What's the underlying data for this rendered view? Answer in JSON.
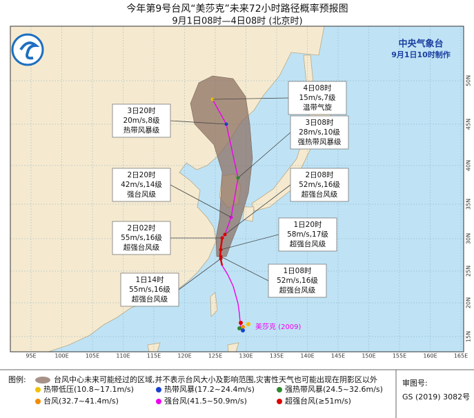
{
  "header": {
    "title": "今年第9号台风“美莎克”未来72小时路径概率预报图",
    "subtitle": "9月1日08时—4日08时 (北京时)"
  },
  "agency": {
    "name": "中央气象台",
    "issued": "9月1日10时制作"
  },
  "storm_label": "美莎克 (2009)",
  "annotations": [
    {
      "time": "4日08时",
      "wind": "15m/s,7级",
      "level": "温带气旋"
    },
    {
      "time": "3日20时",
      "wind": "20m/s,8级",
      "level": "热带风暴级"
    },
    {
      "time": "3日08时",
      "wind": "28m/s,10级",
      "level": "强热带风暴级"
    },
    {
      "time": "2日20时",
      "wind": "42m/s,14级",
      "level": "强台风级"
    },
    {
      "time": "2日08时",
      "wind": "52m/s,16级",
      "level": "超强台风级"
    },
    {
      "time": "2日02时",
      "wind": "55m/s,16级",
      "level": "超强台风级"
    },
    {
      "time": "1日20时",
      "wind": "58m/s,17级",
      "level": "超强台风级"
    },
    {
      "time": "1日14时",
      "wind": "55m/s,16级",
      "level": "超强台风级"
    },
    {
      "time": "1日08时",
      "wind": "52m/s,16级",
      "level": "超强台风级"
    }
  ],
  "longitude_labels": [
    "95E",
    "100E",
    "105E",
    "110E",
    "115E",
    "120E",
    "125E",
    "130E",
    "135E",
    "140E",
    "145E",
    "150E",
    "155E",
    "160E",
    "165E"
  ],
  "latitude_labels": [
    "50N",
    "45N",
    "40N",
    "35N",
    "30N",
    "25N",
    "20N",
    "15N"
  ],
  "legend": {
    "title": "图例:",
    "cone": "台风中心未来可能经过的区域,并不表示台风大小及影响范围,灾害性天气也可能出现在阴影区以外",
    "items": [
      {
        "label": "热带低压(10.8~17.1m/s)",
        "color": "#f2c200"
      },
      {
        "label": "热带风暴(17.2~24.4m/s)",
        "color": "#1a3fcf"
      },
      {
        "label": "强热带风暴(24.5~32.6m/s)",
        "color": "#2e8b2e"
      },
      {
        "label": "台风(32.7~41.4m/s)",
        "color": "#f28c00"
      },
      {
        "label": "强台风(41.5~50.9m/s)",
        "color": "#ee00ee"
      },
      {
        "label": "超强台风(≥51m/s)",
        "color": "#e00000"
      }
    ]
  },
  "approval": {
    "label": "审图号:",
    "number": "GS (2019) 3082号"
  }
}
